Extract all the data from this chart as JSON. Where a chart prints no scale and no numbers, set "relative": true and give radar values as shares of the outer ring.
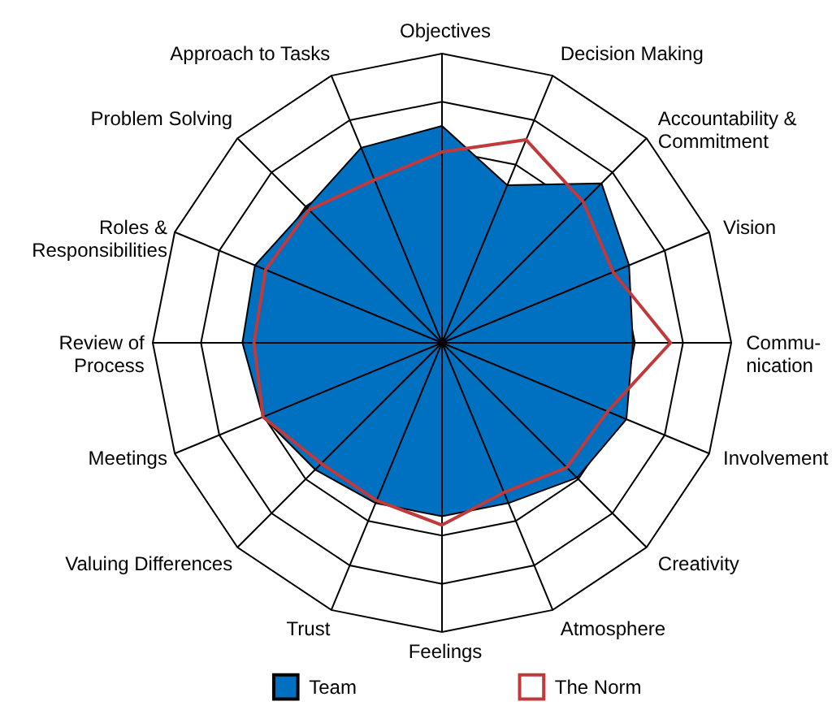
{
  "chart_data": {
    "type": "radar",
    "relative": true,
    "grid": true,
    "legend": "bottom",
    "marker": "none",
    "categories": [
      "Objectives",
      "Decision Making",
      "Accountability &\nCommitment",
      "Vision",
      "Commu-\nnication",
      "Involvement",
      "Creativity",
      "Atmosphere",
      "Feelings",
      "Trust",
      "Valuing Differences",
      "Meetings",
      "Review of\nProcess",
      "Roles &\nResponsibilities",
      "Problem Solving",
      "Approach to Tasks"
    ],
    "series": [
      {
        "name": "Team",
        "color": "#0070c0",
        "values": [
          0.75,
          0.59,
          0.78,
          0.7,
          0.66,
          0.69,
          0.66,
          0.6,
          0.6,
          0.6,
          0.62,
          0.67,
          0.69,
          0.7,
          0.66,
          0.73
        ]
      },
      {
        "name": "The Norm",
        "color": "#c0393b",
        "values": [
          0.66,
          0.76,
          0.69,
          0.64,
          0.79,
          0.62,
          0.61,
          0.56,
          0.63,
          0.59,
          0.59,
          0.67,
          0.65,
          0.66,
          0.65,
          0.61
        ]
      }
    ]
  }
}
